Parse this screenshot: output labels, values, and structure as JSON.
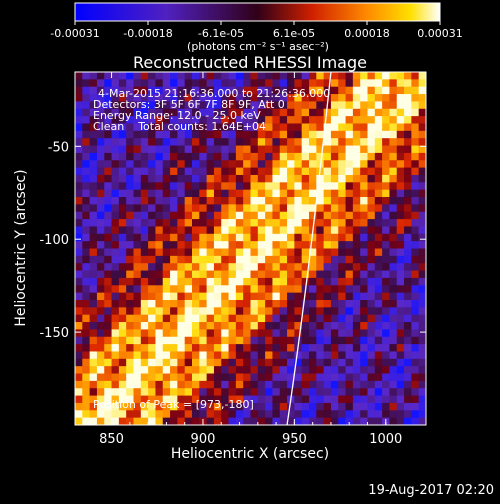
{
  "chart_data": {
    "type": "heatmap",
    "title": "Reconstructed RHESSI Image",
    "xlabel": "Heliocentric X (arcsec)",
    "ylabel": "Heliocentric Y (arcsec)",
    "xlim": [
      830,
      1022
    ],
    "ylim": [
      -200,
      -10
    ],
    "x_ticks": [
      850,
      900,
      950,
      1000
    ],
    "y_ticks": [
      -150,
      -100,
      -50
    ],
    "colorbar": {
      "ticks": [
        "-0.00031",
        "-0.00018",
        "-6.1e-05",
        "6.1e-05",
        "0.00018",
        "0.00031"
      ],
      "units": "(photons cm⁻² s⁻¹ asec⁻²)",
      "range": [
        -0.00031,
        0.00031
      ]
    },
    "annotations": [
      "4-Mar-2015 21:16:36.000 to 21:26:36.000",
      "Detectors: 3F 5F 6F 7F 8F 9F, Att 0",
      "Energy Range: 12.0 - 25.0 keV",
      "Clean    Total counts: 1.64E+04"
    ],
    "peak_label": "Position of Peak = [973,-180]",
    "peak": [
      973,
      -180
    ],
    "limb_points": [
      [
        946,
        -200
      ],
      [
        958,
        -120
      ],
      [
        970,
        -10
      ]
    ]
  },
  "timestamp": "19-Aug-2017 02:20"
}
